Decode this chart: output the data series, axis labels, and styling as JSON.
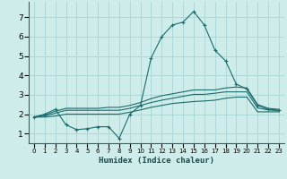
{
  "xlabel": "Humidex (Indice chaleur)",
  "bg_color": "#ceecea",
  "grid_color": "#a8d5d2",
  "line_color": "#1a6b6b",
  "xlim": [
    -0.5,
    23.5
  ],
  "ylim": [
    0.5,
    7.8
  ],
  "xticks": [
    0,
    1,
    2,
    3,
    4,
    5,
    6,
    7,
    8,
    9,
    10,
    11,
    12,
    13,
    14,
    15,
    16,
    17,
    18,
    19,
    20,
    21,
    22,
    23
  ],
  "yticks": [
    1,
    2,
    3,
    4,
    5,
    6,
    7
  ],
  "series": [
    {
      "x": [
        0,
        1,
        2,
        3,
        4,
        5,
        6,
        7,
        8,
        9,
        10,
        11,
        12,
        13,
        14,
        15,
        16,
        17,
        18,
        19,
        20,
        21,
        22,
        23
      ],
      "y": [
        1.85,
        2.0,
        2.25,
        1.45,
        1.2,
        1.25,
        1.35,
        1.35,
        0.75,
        2.0,
        2.45,
        4.9,
        6.0,
        6.6,
        6.75,
        7.3,
        6.6,
        5.3,
        4.75,
        3.55,
        3.3,
        2.45,
        2.25,
        2.2
      ],
      "marker": "+"
    },
    {
      "x": [
        0,
        1,
        2,
        3,
        4,
        5,
        6,
        7,
        8,
        9,
        10,
        11,
        12,
        13,
        14,
        15,
        16,
        17,
        18,
        19,
        20,
        21,
        22,
        23
      ],
      "y": [
        1.85,
        1.95,
        2.15,
        2.3,
        2.3,
        2.3,
        2.3,
        2.35,
        2.35,
        2.45,
        2.6,
        2.8,
        2.95,
        3.05,
        3.15,
        3.25,
        3.25,
        3.25,
        3.35,
        3.4,
        3.35,
        2.5,
        2.3,
        2.25
      ],
      "marker": null
    },
    {
      "x": [
        0,
        1,
        2,
        3,
        4,
        5,
        6,
        7,
        8,
        9,
        10,
        11,
        12,
        13,
        14,
        15,
        16,
        17,
        18,
        19,
        20,
        21,
        22,
        23
      ],
      "y": [
        1.85,
        1.9,
        2.05,
        2.2,
        2.2,
        2.2,
        2.2,
        2.2,
        2.2,
        2.3,
        2.45,
        2.6,
        2.72,
        2.82,
        2.92,
        3.02,
        3.02,
        3.08,
        3.15,
        3.15,
        3.15,
        2.32,
        2.22,
        2.18
      ],
      "marker": null
    },
    {
      "x": [
        0,
        1,
        2,
        3,
        4,
        5,
        6,
        7,
        8,
        9,
        10,
        11,
        12,
        13,
        14,
        15,
        16,
        17,
        18,
        19,
        20,
        21,
        22,
        23
      ],
      "y": [
        1.85,
        1.85,
        1.9,
        2.0,
        2.0,
        2.0,
        2.0,
        2.0,
        2.0,
        2.1,
        2.22,
        2.35,
        2.45,
        2.55,
        2.6,
        2.65,
        2.68,
        2.72,
        2.82,
        2.88,
        2.88,
        2.12,
        2.12,
        2.12
      ],
      "marker": null
    }
  ]
}
